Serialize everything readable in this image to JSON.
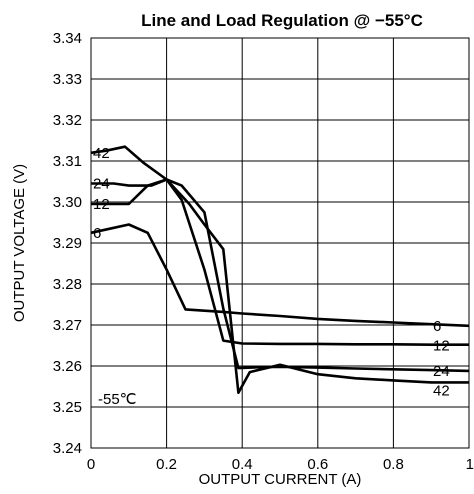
{
  "chart_data": {
    "type": "line",
    "title": "Line and Load Regulation @ −55°C",
    "xlabel": "OUTPUT CURRENT (A)",
    "ylabel": "OUTPUT VOLTAGE (V)",
    "xlim": [
      0,
      1
    ],
    "ylim": [
      3.24,
      3.34
    ],
    "x_ticks": [
      "0",
      "0.2",
      "0.4",
      "0.6",
      "0.8",
      "1"
    ],
    "y_ticks": [
      "3.24",
      "3.25",
      "3.26",
      "3.27",
      "3.28",
      "3.29",
      "3.30",
      "3.31",
      "3.32",
      "3.33",
      "3.34"
    ],
    "grid": true,
    "annotation": "-55℃",
    "series": [
      {
        "name": "42",
        "x": [
          0.0,
          0.04,
          0.09,
          0.14,
          0.2,
          0.26,
          0.3,
          0.35,
          0.39,
          0.42,
          0.5,
          0.6,
          0.7,
          0.8,
          0.9,
          1.0
        ],
        "y": [
          3.312,
          3.3125,
          3.3135,
          3.3095,
          3.3055,
          3.2995,
          3.2945,
          3.2885,
          3.2535,
          3.2585,
          3.2603,
          3.258,
          3.257,
          3.2565,
          3.256,
          3.256
        ]
      },
      {
        "name": "24",
        "x": [
          0.0,
          0.06,
          0.1,
          0.16,
          0.2,
          0.24,
          0.3,
          0.35,
          0.39,
          0.45,
          0.5,
          0.6,
          0.7,
          0.8,
          0.9,
          1.0
        ],
        "y": [
          3.3045,
          3.3045,
          3.304,
          3.304,
          3.3055,
          3.304,
          3.2975,
          3.274,
          3.2595,
          3.2597,
          3.2598,
          3.2596,
          3.2594,
          3.2592,
          3.259,
          3.2588
        ]
      },
      {
        "name": "12",
        "x": [
          0.0,
          0.1,
          0.15,
          0.2,
          0.24,
          0.3,
          0.35,
          0.4,
          0.5,
          0.6,
          0.7,
          0.8,
          0.9,
          1.0
        ],
        "y": [
          3.2995,
          3.2995,
          3.304,
          3.3055,
          3.3005,
          3.2835,
          3.2662,
          3.2655,
          3.2654,
          3.2654,
          3.2653,
          3.2653,
          3.2652,
          3.2652
        ]
      },
      {
        "name": "6",
        "x": [
          0.0,
          0.05,
          0.1,
          0.15,
          0.2,
          0.25,
          0.3,
          0.35,
          0.4,
          0.5,
          0.6,
          0.7,
          0.8,
          0.9,
          1.0
        ],
        "y": [
          3.2925,
          3.2935,
          3.2945,
          3.2925,
          3.2835,
          3.2738,
          3.2735,
          3.2732,
          3.2728,
          3.2722,
          3.2715,
          3.271,
          3.2706,
          3.2702,
          3.2698
        ]
      }
    ]
  }
}
